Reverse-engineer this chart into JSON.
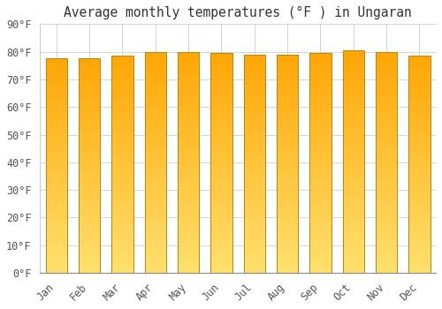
{
  "title": "Average monthly temperatures (°F ) in Ungaran",
  "months": [
    "Jan",
    "Feb",
    "Mar",
    "Apr",
    "May",
    "Jun",
    "Jul",
    "Aug",
    "Sep",
    "Oct",
    "Nov",
    "Dec"
  ],
  "values": [
    77.5,
    77.5,
    78.5,
    80.0,
    80.0,
    79.5,
    79.0,
    79.0,
    79.5,
    80.5,
    80.0,
    78.5
  ],
  "bar_color_top": "#FFA500",
  "bar_color_bottom": "#FFDC6E",
  "bar_edge_color": "#B8860B",
  "ylim": [
    0,
    90
  ],
  "ytick_step": 10,
  "background_color": "#ffffff",
  "plot_bg_color": "#ffffff",
  "grid_color": "#cccccc",
  "title_fontsize": 10.5,
  "tick_fontsize": 8.5,
  "font_family": "monospace",
  "bar_width": 0.65
}
